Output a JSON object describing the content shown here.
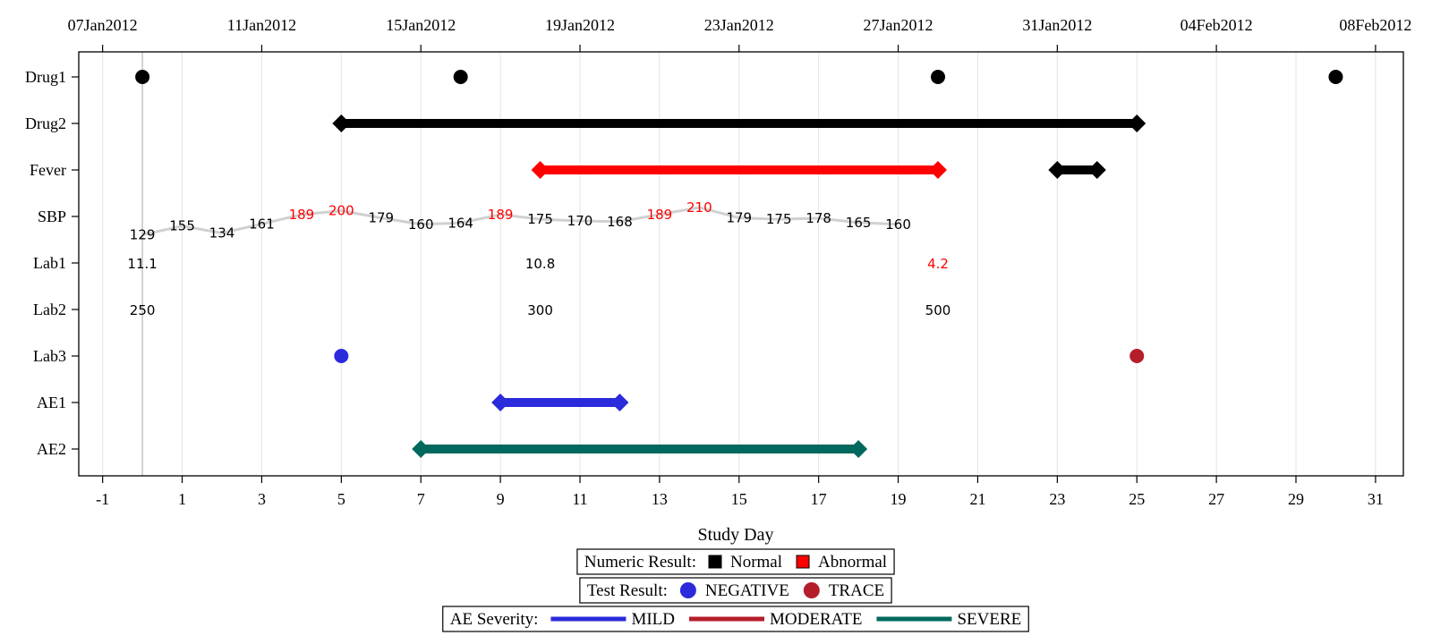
{
  "chart_data": {
    "type": "timeline",
    "xlabel": "Study Day",
    "xlim": [
      -1.6,
      31.7
    ],
    "x_ticks": [
      -1,
      1,
      3,
      5,
      7,
      9,
      11,
      13,
      15,
      17,
      19,
      21,
      23,
      25,
      27,
      29,
      31
    ],
    "x_tick_labels": [
      "-1",
      "1",
      "3",
      "5",
      "7",
      "9",
      "11",
      "13",
      "15",
      "17",
      "19",
      "21",
      "23",
      "25",
      "27",
      "29",
      "31"
    ],
    "x2_ticks": [
      -1,
      3,
      7,
      11,
      15,
      19,
      23,
      27,
      31
    ],
    "x2_tick_labels": [
      "07Jan2012",
      "11Jan2012",
      "15Jan2012",
      "19Jan2012",
      "23Jan2012",
      "27Jan2012",
      "31Jan2012",
      "04Feb2012",
      "08Feb2012"
    ],
    "grid": true,
    "reference_line_day": 0,
    "rows": [
      "Drug1",
      "Drug2",
      "Fever",
      "SBP",
      "Lab1",
      "Lab2",
      "Lab3",
      "AE1",
      "AE2"
    ],
    "colors": {
      "normal": "#000000",
      "abnormal": "#ff0000",
      "negative": "#2b2bdc",
      "trace": "#b41e2a",
      "mild": "#2b2bdc",
      "moderate": "#b41e2a",
      "severe": "#00685e",
      "grid": "#e4e4e4",
      "sbp_line": "#d0d0d0"
    },
    "markers": [
      {
        "row": "Drug1",
        "day": 0,
        "color": "#000000"
      },
      {
        "row": "Drug1",
        "day": 8,
        "color": "#000000"
      },
      {
        "row": "Drug1",
        "day": 20,
        "color": "#000000"
      },
      {
        "row": "Drug1",
        "day": 30,
        "color": "#000000"
      },
      {
        "row": "Lab3",
        "day": 5,
        "color": "#2b2bdc",
        "result": "NEGATIVE"
      },
      {
        "row": "Lab3",
        "day": 25,
        "color": "#b41e2a",
        "result": "TRACE"
      }
    ],
    "intervals": [
      {
        "row": "Drug2",
        "start": 5,
        "end": 25,
        "color": "#000000"
      },
      {
        "row": "Fever",
        "start": 10,
        "end": 20,
        "color": "#ff0000"
      },
      {
        "row": "Fever",
        "start": 23,
        "end": 24,
        "color": "#000000"
      },
      {
        "row": "AE1",
        "start": 9,
        "end": 12,
        "color": "#2b2bdc",
        "severity": "MILD"
      },
      {
        "row": "AE2",
        "start": 7,
        "end": 18,
        "color": "#00685e",
        "severity": "SEVERE"
      }
    ],
    "sbp": [
      {
        "day": 0,
        "value": 129,
        "label": "129",
        "abnormal": false
      },
      {
        "day": 1,
        "value": 155,
        "label": "155",
        "abnormal": false
      },
      {
        "day": 2,
        "value": 134,
        "label": "134",
        "abnormal": false
      },
      {
        "day": 3,
        "value": 161,
        "label": "161",
        "abnormal": false
      },
      {
        "day": 4,
        "value": 189,
        "label": "189",
        "abnormal": true
      },
      {
        "day": 5,
        "value": 200,
        "label": "200",
        "abnormal": true
      },
      {
        "day": 6,
        "value": 179,
        "label": "179",
        "abnormal": false
      },
      {
        "day": 7,
        "value": 160,
        "label": "160",
        "abnormal": false
      },
      {
        "day": 8,
        "value": 164,
        "label": "164",
        "abnormal": false
      },
      {
        "day": 9,
        "value": 189,
        "label": "189",
        "abnormal": true
      },
      {
        "day": 10,
        "value": 175,
        "label": "175",
        "abnormal": false
      },
      {
        "day": 11,
        "value": 170,
        "label": "170",
        "abnormal": false
      },
      {
        "day": 12,
        "value": 168,
        "label": "168",
        "abnormal": false
      },
      {
        "day": 13,
        "value": 189,
        "label": "189",
        "abnormal": true
      },
      {
        "day": 14,
        "value": 210,
        "label": "210",
        "abnormal": true
      },
      {
        "day": 15,
        "value": 179,
        "label": "179",
        "abnormal": false
      },
      {
        "day": 16,
        "value": 175,
        "label": "175",
        "abnormal": false
      },
      {
        "day": 17,
        "value": 178,
        "label": "178",
        "abnormal": false
      },
      {
        "day": 18,
        "value": 165,
        "label": "165",
        "abnormal": false
      },
      {
        "day": 19,
        "value": 160,
        "label": "160",
        "abnormal": false
      }
    ],
    "lab_values": [
      {
        "row": "Lab1",
        "day": 0,
        "label": "11.1",
        "abnormal": false
      },
      {
        "row": "Lab1",
        "day": 10,
        "label": "10.8",
        "abnormal": false
      },
      {
        "row": "Lab1",
        "day": 20,
        "label": "4.2",
        "abnormal": true
      },
      {
        "row": "Lab2",
        "day": 0,
        "label": "250",
        "abnormal": false
      },
      {
        "row": "Lab2",
        "day": 10,
        "label": "300",
        "abnormal": false
      },
      {
        "row": "Lab2",
        "day": 20,
        "label": "500",
        "abnormal": false
      }
    ],
    "legends": [
      {
        "title": "Numeric Result:",
        "type": "square",
        "entries": [
          {
            "label": "Normal",
            "color": "#000000"
          },
          {
            "label": "Abnormal",
            "color": "#ff0000"
          }
        ]
      },
      {
        "title": "Test Result:",
        "type": "circle",
        "entries": [
          {
            "label": "NEGATIVE",
            "color": "#2b2bdc"
          },
          {
            "label": "TRACE",
            "color": "#b41e2a"
          }
        ]
      },
      {
        "title": "AE Severity:",
        "type": "line",
        "entries": [
          {
            "label": "MILD",
            "color": "#2b2bdc"
          },
          {
            "label": "MODERATE",
            "color": "#b41e2a"
          },
          {
            "label": "SEVERE",
            "color": "#00685e"
          }
        ]
      }
    ]
  }
}
